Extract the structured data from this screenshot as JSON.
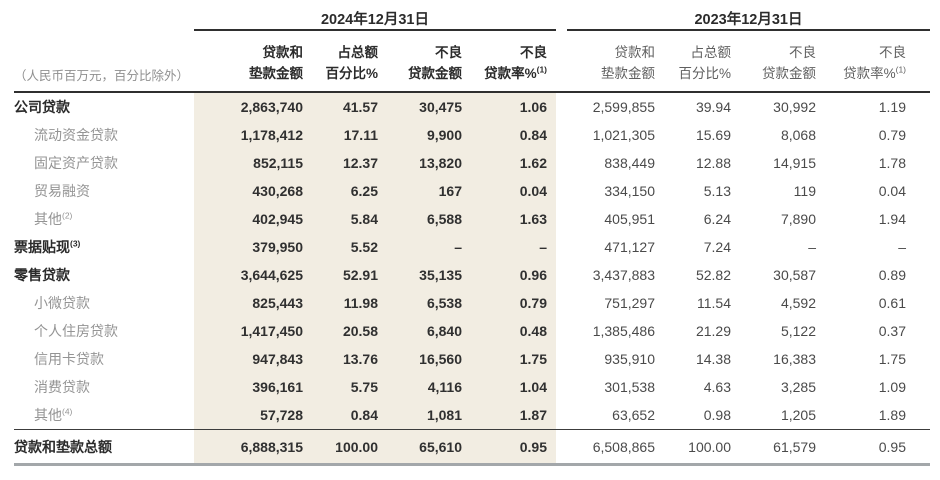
{
  "page": {
    "unit_note": "（人民币百万元，百分比除外）"
  },
  "periods": [
    {
      "label": "2024年12月31日"
    },
    {
      "label": "2023年12月31日"
    }
  ],
  "columns": [
    {
      "line1": "贷款和",
      "line2": "垫款金额",
      "sup": ""
    },
    {
      "line1": "占总额",
      "line2": "百分比%",
      "sup": ""
    },
    {
      "line1": "不良",
      "line2": "贷款金额",
      "sup": ""
    },
    {
      "line1": "不良",
      "line2": "贷款率%",
      "sup": "(1)"
    }
  ],
  "rows": [
    {
      "label": "公司贷款",
      "sup": "",
      "style": "major",
      "v2024": [
        "2,863,740",
        "41.57",
        "30,475",
        "1.06"
      ],
      "v2023": [
        "2,599,855",
        "39.94",
        "30,992",
        "1.19"
      ]
    },
    {
      "label": "流动资金贷款",
      "sup": "",
      "style": "sub",
      "v2024": [
        "1,178,412",
        "17.11",
        "9,900",
        "0.84"
      ],
      "v2023": [
        "1,021,305",
        "15.69",
        "8,068",
        "0.79"
      ]
    },
    {
      "label": "固定资产贷款",
      "sup": "",
      "style": "sub",
      "v2024": [
        "852,115",
        "12.37",
        "13,820",
        "1.62"
      ],
      "v2023": [
        "838,449",
        "12.88",
        "14,915",
        "1.78"
      ]
    },
    {
      "label": "贸易融资",
      "sup": "",
      "style": "sub",
      "v2024": [
        "430,268",
        "6.25",
        "167",
        "0.04"
      ],
      "v2023": [
        "334,150",
        "5.13",
        "119",
        "0.04"
      ]
    },
    {
      "label": "其他",
      "sup": "(2)",
      "style": "sub",
      "v2024": [
        "402,945",
        "5.84",
        "6,588",
        "1.63"
      ],
      "v2023": [
        "405,951",
        "6.24",
        "7,890",
        "1.94"
      ]
    },
    {
      "label": "票据贴现",
      "sup": "(3)",
      "style": "major",
      "v2024": [
        "379,950",
        "5.52",
        "–",
        "–"
      ],
      "v2023": [
        "471,127",
        "7.24",
        "–",
        "–"
      ]
    },
    {
      "label": "零售贷款",
      "sup": "",
      "style": "major",
      "v2024": [
        "3,644,625",
        "52.91",
        "35,135",
        "0.96"
      ],
      "v2023": [
        "3,437,883",
        "52.82",
        "30,587",
        "0.89"
      ]
    },
    {
      "label": "小微贷款",
      "sup": "",
      "style": "sub",
      "v2024": [
        "825,443",
        "11.98",
        "6,538",
        "0.79"
      ],
      "v2023": [
        "751,297",
        "11.54",
        "4,592",
        "0.61"
      ]
    },
    {
      "label": "个人住房贷款",
      "sup": "",
      "style": "sub",
      "v2024": [
        "1,417,450",
        "20.58",
        "6,840",
        "0.48"
      ],
      "v2023": [
        "1,385,486",
        "21.29",
        "5,122",
        "0.37"
      ]
    },
    {
      "label": "信用卡贷款",
      "sup": "",
      "style": "sub",
      "v2024": [
        "947,843",
        "13.76",
        "16,560",
        "1.75"
      ],
      "v2023": [
        "935,910",
        "14.38",
        "16,383",
        "1.75"
      ]
    },
    {
      "label": "消费贷款",
      "sup": "",
      "style": "sub",
      "v2024": [
        "396,161",
        "5.75",
        "4,116",
        "1.04"
      ],
      "v2023": [
        "301,538",
        "4.63",
        "3,285",
        "1.09"
      ]
    },
    {
      "label": "其他",
      "sup": "(4)",
      "style": "sub",
      "v2024": [
        "57,728",
        "0.84",
        "1,081",
        "1.87"
      ],
      "v2023": [
        "63,652",
        "0.98",
        "1,205",
        "1.89"
      ]
    },
    {
      "label": "贷款和垫款总额",
      "sup": "",
      "style": "total",
      "v2024": [
        "6,888,315",
        "100.00",
        "65,610",
        "0.95"
      ],
      "v2023": [
        "6,508,865",
        "100.00",
        "61,579",
        "0.95"
      ]
    }
  ],
  "colors": {
    "highlight_2024": "#f2ede2",
    "header_text": "#2b2b2b",
    "subrow_label": "#949494",
    "bottom_border": "#a3a7aa"
  }
}
